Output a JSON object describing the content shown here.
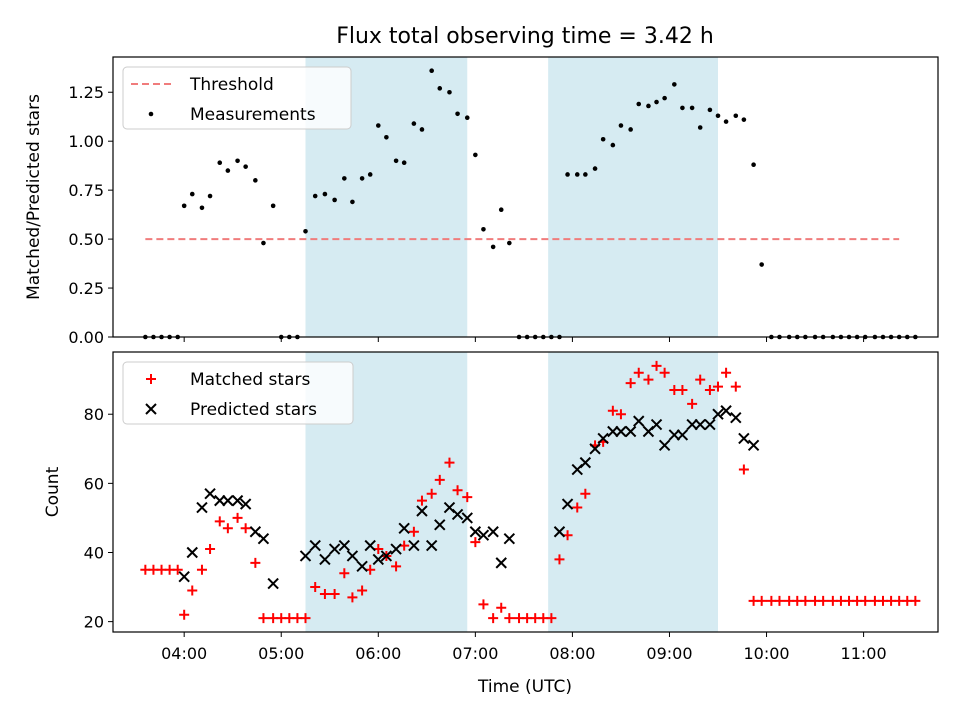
{
  "figure": {
    "title": "Flux total observing time = 3.42 h",
    "xlabel": "Time (UTC)"
  },
  "chart_data": [
    {
      "type": "scatter",
      "ylabel": "Matched/Predicted stars",
      "xlim": [
        "03:16",
        "11:46"
      ],
      "ylim": [
        0,
        1.43
      ],
      "yticks": [
        "0.00",
        "0.25",
        "0.50",
        "0.75",
        "1.00",
        "1.25"
      ],
      "shaded_regions": [
        [
          "05:15",
          "06:55"
        ],
        [
          "07:45",
          "09:30"
        ]
      ],
      "legend": {
        "position": "top-left",
        "entries": [
          "Threshold",
          "Measurements"
        ]
      },
      "threshold": {
        "name": "Threshold",
        "y": 0.5,
        "x": [
          "03:36",
          "11:22"
        ],
        "color": "#f07c7c"
      },
      "series": [
        {
          "name": "Measurements",
          "color": "#000000",
          "points": [
            [
              "03:36",
              0
            ],
            [
              "03:41",
              0
            ],
            [
              "03:46",
              0
            ],
            [
              "03:51",
              0
            ],
            [
              "03:56",
              0
            ],
            [
              "04:00",
              0.67
            ],
            [
              "04:05",
              0.73
            ],
            [
              "04:11",
              0.66
            ],
            [
              "04:16",
              0.72
            ],
            [
              "04:22",
              0.89
            ],
            [
              "04:27",
              0.85
            ],
            [
              "04:33",
              0.9
            ],
            [
              "04:38",
              0.87
            ],
            [
              "04:44",
              0.8
            ],
            [
              "04:49",
              0.48
            ],
            [
              "04:55",
              0.67
            ],
            [
              "05:00",
              0
            ],
            [
              "05:05",
              0
            ],
            [
              "05:10",
              0
            ],
            [
              "05:15",
              0.54
            ],
            [
              "05:21",
              0.72
            ],
            [
              "05:27",
              0.73
            ],
            [
              "05:33",
              0.7
            ],
            [
              "05:39",
              0.81
            ],
            [
              "05:44",
              0.69
            ],
            [
              "05:50",
              0.81
            ],
            [
              "05:55",
              0.83
            ],
            [
              "06:00",
              1.08
            ],
            [
              "06:05",
              1.02
            ],
            [
              "06:11",
              0.9
            ],
            [
              "06:16",
              0.89
            ],
            [
              "06:22",
              1.09
            ],
            [
              "06:27",
              1.06
            ],
            [
              "06:33",
              1.36
            ],
            [
              "06:38",
              1.27
            ],
            [
              "06:44",
              1.25
            ],
            [
              "06:49",
              1.14
            ],
            [
              "06:55",
              1.12
            ],
            [
              "07:00",
              0.93
            ],
            [
              "07:05",
              0.55
            ],
            [
              "07:11",
              0.46
            ],
            [
              "07:16",
              0.65
            ],
            [
              "07:21",
              0.48
            ],
            [
              "07:27",
              0
            ],
            [
              "07:32",
              0
            ],
            [
              "07:37",
              0
            ],
            [
              "07:42",
              0
            ],
            [
              "07:47",
              0
            ],
            [
              "07:52",
              0
            ],
            [
              "07:57",
              0.83
            ],
            [
              "08:03",
              0.83
            ],
            [
              "08:08",
              0.83
            ],
            [
              "08:14",
              0.86
            ],
            [
              "08:19",
              1.01
            ],
            [
              "08:25",
              0.98
            ],
            [
              "08:30",
              1.08
            ],
            [
              "08:36",
              1.06
            ],
            [
              "08:41",
              1.19
            ],
            [
              "08:47",
              1.18
            ],
            [
              "08:52",
              1.2
            ],
            [
              "08:57",
              1.22
            ],
            [
              "09:03",
              1.29
            ],
            [
              "09:08",
              1.17
            ],
            [
              "09:14",
              1.17
            ],
            [
              "09:19",
              1.07
            ],
            [
              "09:25",
              1.16
            ],
            [
              "09:30",
              1.13
            ],
            [
              "09:35",
              1.1
            ],
            [
              "09:41",
              1.13
            ],
            [
              "09:46",
              1.11
            ],
            [
              "09:52",
              0.88
            ],
            [
              "09:57",
              0.37
            ],
            [
              "10:03",
              0
            ],
            [
              "10:08",
              0
            ],
            [
              "10:14",
              0
            ],
            [
              "10:19",
              0
            ],
            [
              "10:24",
              0
            ],
            [
              "10:30",
              0
            ],
            [
              "10:35",
              0
            ],
            [
              "10:41",
              0
            ],
            [
              "10:46",
              0
            ],
            [
              "10:51",
              0
            ],
            [
              "10:56",
              0
            ],
            [
              "11:01",
              0
            ],
            [
              "11:07",
              0
            ],
            [
              "11:12",
              0
            ],
            [
              "11:17",
              0
            ],
            [
              "11:22",
              0
            ],
            [
              "11:27",
              0
            ],
            [
              "11:32",
              0
            ]
          ]
        }
      ]
    },
    {
      "type": "scatter",
      "ylabel": "Count",
      "xlabel": "Time (UTC)",
      "xlim": [
        "03:16",
        "11:46"
      ],
      "ylim": [
        17,
        98
      ],
      "yticks": [
        "20",
        "40",
        "60",
        "80"
      ],
      "xticks": [
        "04:00",
        "05:00",
        "06:00",
        "07:00",
        "08:00",
        "09:00",
        "10:00",
        "11:00"
      ],
      "shaded_regions": [
        [
          "05:15",
          "06:55"
        ],
        [
          "07:45",
          "09:30"
        ]
      ],
      "legend": {
        "position": "top-left",
        "entries": [
          "Matched stars",
          "Predicted stars"
        ]
      },
      "series": [
        {
          "name": "Matched stars",
          "marker": "plus",
          "color": "#ff0000",
          "points": [
            [
              "03:36",
              35
            ],
            [
              "03:41",
              35
            ],
            [
              "03:46",
              35
            ],
            [
              "03:51",
              35
            ],
            [
              "03:56",
              35
            ],
            [
              "04:00",
              22
            ],
            [
              "04:05",
              29
            ],
            [
              "04:11",
              35
            ],
            [
              "04:16",
              41
            ],
            [
              "04:22",
              49
            ],
            [
              "04:27",
              47
            ],
            [
              "04:33",
              50
            ],
            [
              "04:38",
              47
            ],
            [
              "04:44",
              37
            ],
            [
              "04:49",
              21
            ],
            [
              "04:55",
              21
            ],
            [
              "05:00",
              21
            ],
            [
              "05:05",
              21
            ],
            [
              "05:10",
              21
            ],
            [
              "05:15",
              21
            ],
            [
              "05:21",
              30
            ],
            [
              "05:27",
              28
            ],
            [
              "05:33",
              28
            ],
            [
              "05:39",
              34
            ],
            [
              "05:44",
              27
            ],
            [
              "05:50",
              29
            ],
            [
              "05:55",
              35
            ],
            [
              "06:00",
              41
            ],
            [
              "06:05",
              39
            ],
            [
              "06:11",
              36
            ],
            [
              "06:16",
              42
            ],
            [
              "06:22",
              46
            ],
            [
              "06:27",
              55
            ],
            [
              "06:33",
              57
            ],
            [
              "06:38",
              61
            ],
            [
              "06:44",
              66
            ],
            [
              "06:49",
              58
            ],
            [
              "06:55",
              56
            ],
            [
              "07:00",
              43
            ],
            [
              "07:05",
              25
            ],
            [
              "07:11",
              21
            ],
            [
              "07:16",
              24
            ],
            [
              "07:21",
              21
            ],
            [
              "07:27",
              21
            ],
            [
              "07:32",
              21
            ],
            [
              "07:37",
              21
            ],
            [
              "07:42",
              21
            ],
            [
              "07:47",
              21
            ],
            [
              "07:52",
              38
            ],
            [
              "07:57",
              45
            ],
            [
              "08:03",
              53
            ],
            [
              "08:08",
              57
            ],
            [
              "08:14",
              71
            ],
            [
              "08:19",
              72
            ],
            [
              "08:25",
              81
            ],
            [
              "08:30",
              80
            ],
            [
              "08:36",
              89
            ],
            [
              "08:41",
              92
            ],
            [
              "08:47",
              90
            ],
            [
              "08:52",
              94
            ],
            [
              "08:57",
              92
            ],
            [
              "09:03",
              87
            ],
            [
              "09:08",
              87
            ],
            [
              "09:14",
              83
            ],
            [
              "09:19",
              90
            ],
            [
              "09:25",
              87
            ],
            [
              "09:30",
              88
            ],
            [
              "09:35",
              92
            ],
            [
              "09:41",
              88
            ],
            [
              "09:46",
              64
            ],
            [
              "09:52",
              26
            ],
            [
              "09:57",
              26
            ],
            [
              "10:03",
              26
            ],
            [
              "10:08",
              26
            ],
            [
              "10:14",
              26
            ],
            [
              "10:19",
              26
            ],
            [
              "10:24",
              26
            ],
            [
              "10:30",
              26
            ],
            [
              "10:35",
              26
            ],
            [
              "10:41",
              26
            ],
            [
              "10:46",
              26
            ],
            [
              "10:51",
              26
            ],
            [
              "10:56",
              26
            ],
            [
              "11:01",
              26
            ],
            [
              "11:07",
              26
            ],
            [
              "11:12",
              26
            ],
            [
              "11:17",
              26
            ],
            [
              "11:22",
              26
            ],
            [
              "11:27",
              26
            ],
            [
              "11:32",
              26
            ]
          ]
        },
        {
          "name": "Predicted stars",
          "marker": "x",
          "color": "#000000",
          "points": [
            [
              "04:00",
              33
            ],
            [
              "04:05",
              40
            ],
            [
              "04:11",
              53
            ],
            [
              "04:16",
              57
            ],
            [
              "04:22",
              55
            ],
            [
              "04:27",
              55
            ],
            [
              "04:33",
              55
            ],
            [
              "04:38",
              54
            ],
            [
              "04:44",
              46
            ],
            [
              "04:49",
              44
            ],
            [
              "04:55",
              31
            ],
            [
              "05:15",
              39
            ],
            [
              "05:21",
              42
            ],
            [
              "05:27",
              38
            ],
            [
              "05:33",
              41
            ],
            [
              "05:39",
              42
            ],
            [
              "05:44",
              39
            ],
            [
              "05:50",
              36
            ],
            [
              "05:55",
              42
            ],
            [
              "06:00",
              38
            ],
            [
              "06:05",
              39
            ],
            [
              "06:11",
              41
            ],
            [
              "06:16",
              47
            ],
            [
              "06:22",
              42
            ],
            [
              "06:27",
              52
            ],
            [
              "06:33",
              42
            ],
            [
              "06:38",
              48
            ],
            [
              "06:44",
              53
            ],
            [
              "06:49",
              51
            ],
            [
              "06:55",
              50
            ],
            [
              "07:00",
              46
            ],
            [
              "07:05",
              45
            ],
            [
              "07:11",
              46
            ],
            [
              "07:16",
              37
            ],
            [
              "07:21",
              44
            ],
            [
              "07:52",
              46
            ],
            [
              "07:57",
              54
            ],
            [
              "08:03",
              64
            ],
            [
              "08:08",
              66
            ],
            [
              "08:14",
              70
            ],
            [
              "08:19",
              73
            ],
            [
              "08:25",
              75
            ],
            [
              "08:30",
              75
            ],
            [
              "08:36",
              75
            ],
            [
              "08:41",
              78
            ],
            [
              "08:47",
              75
            ],
            [
              "08:52",
              77
            ],
            [
              "08:57",
              71
            ],
            [
              "09:03",
              74
            ],
            [
              "09:08",
              74
            ],
            [
              "09:14",
              77
            ],
            [
              "09:19",
              77
            ],
            [
              "09:25",
              77
            ],
            [
              "09:30",
              80
            ],
            [
              "09:35",
              81
            ],
            [
              "09:41",
              79
            ],
            [
              "09:46",
              73
            ],
            [
              "09:52",
              71
            ]
          ]
        }
      ]
    }
  ]
}
